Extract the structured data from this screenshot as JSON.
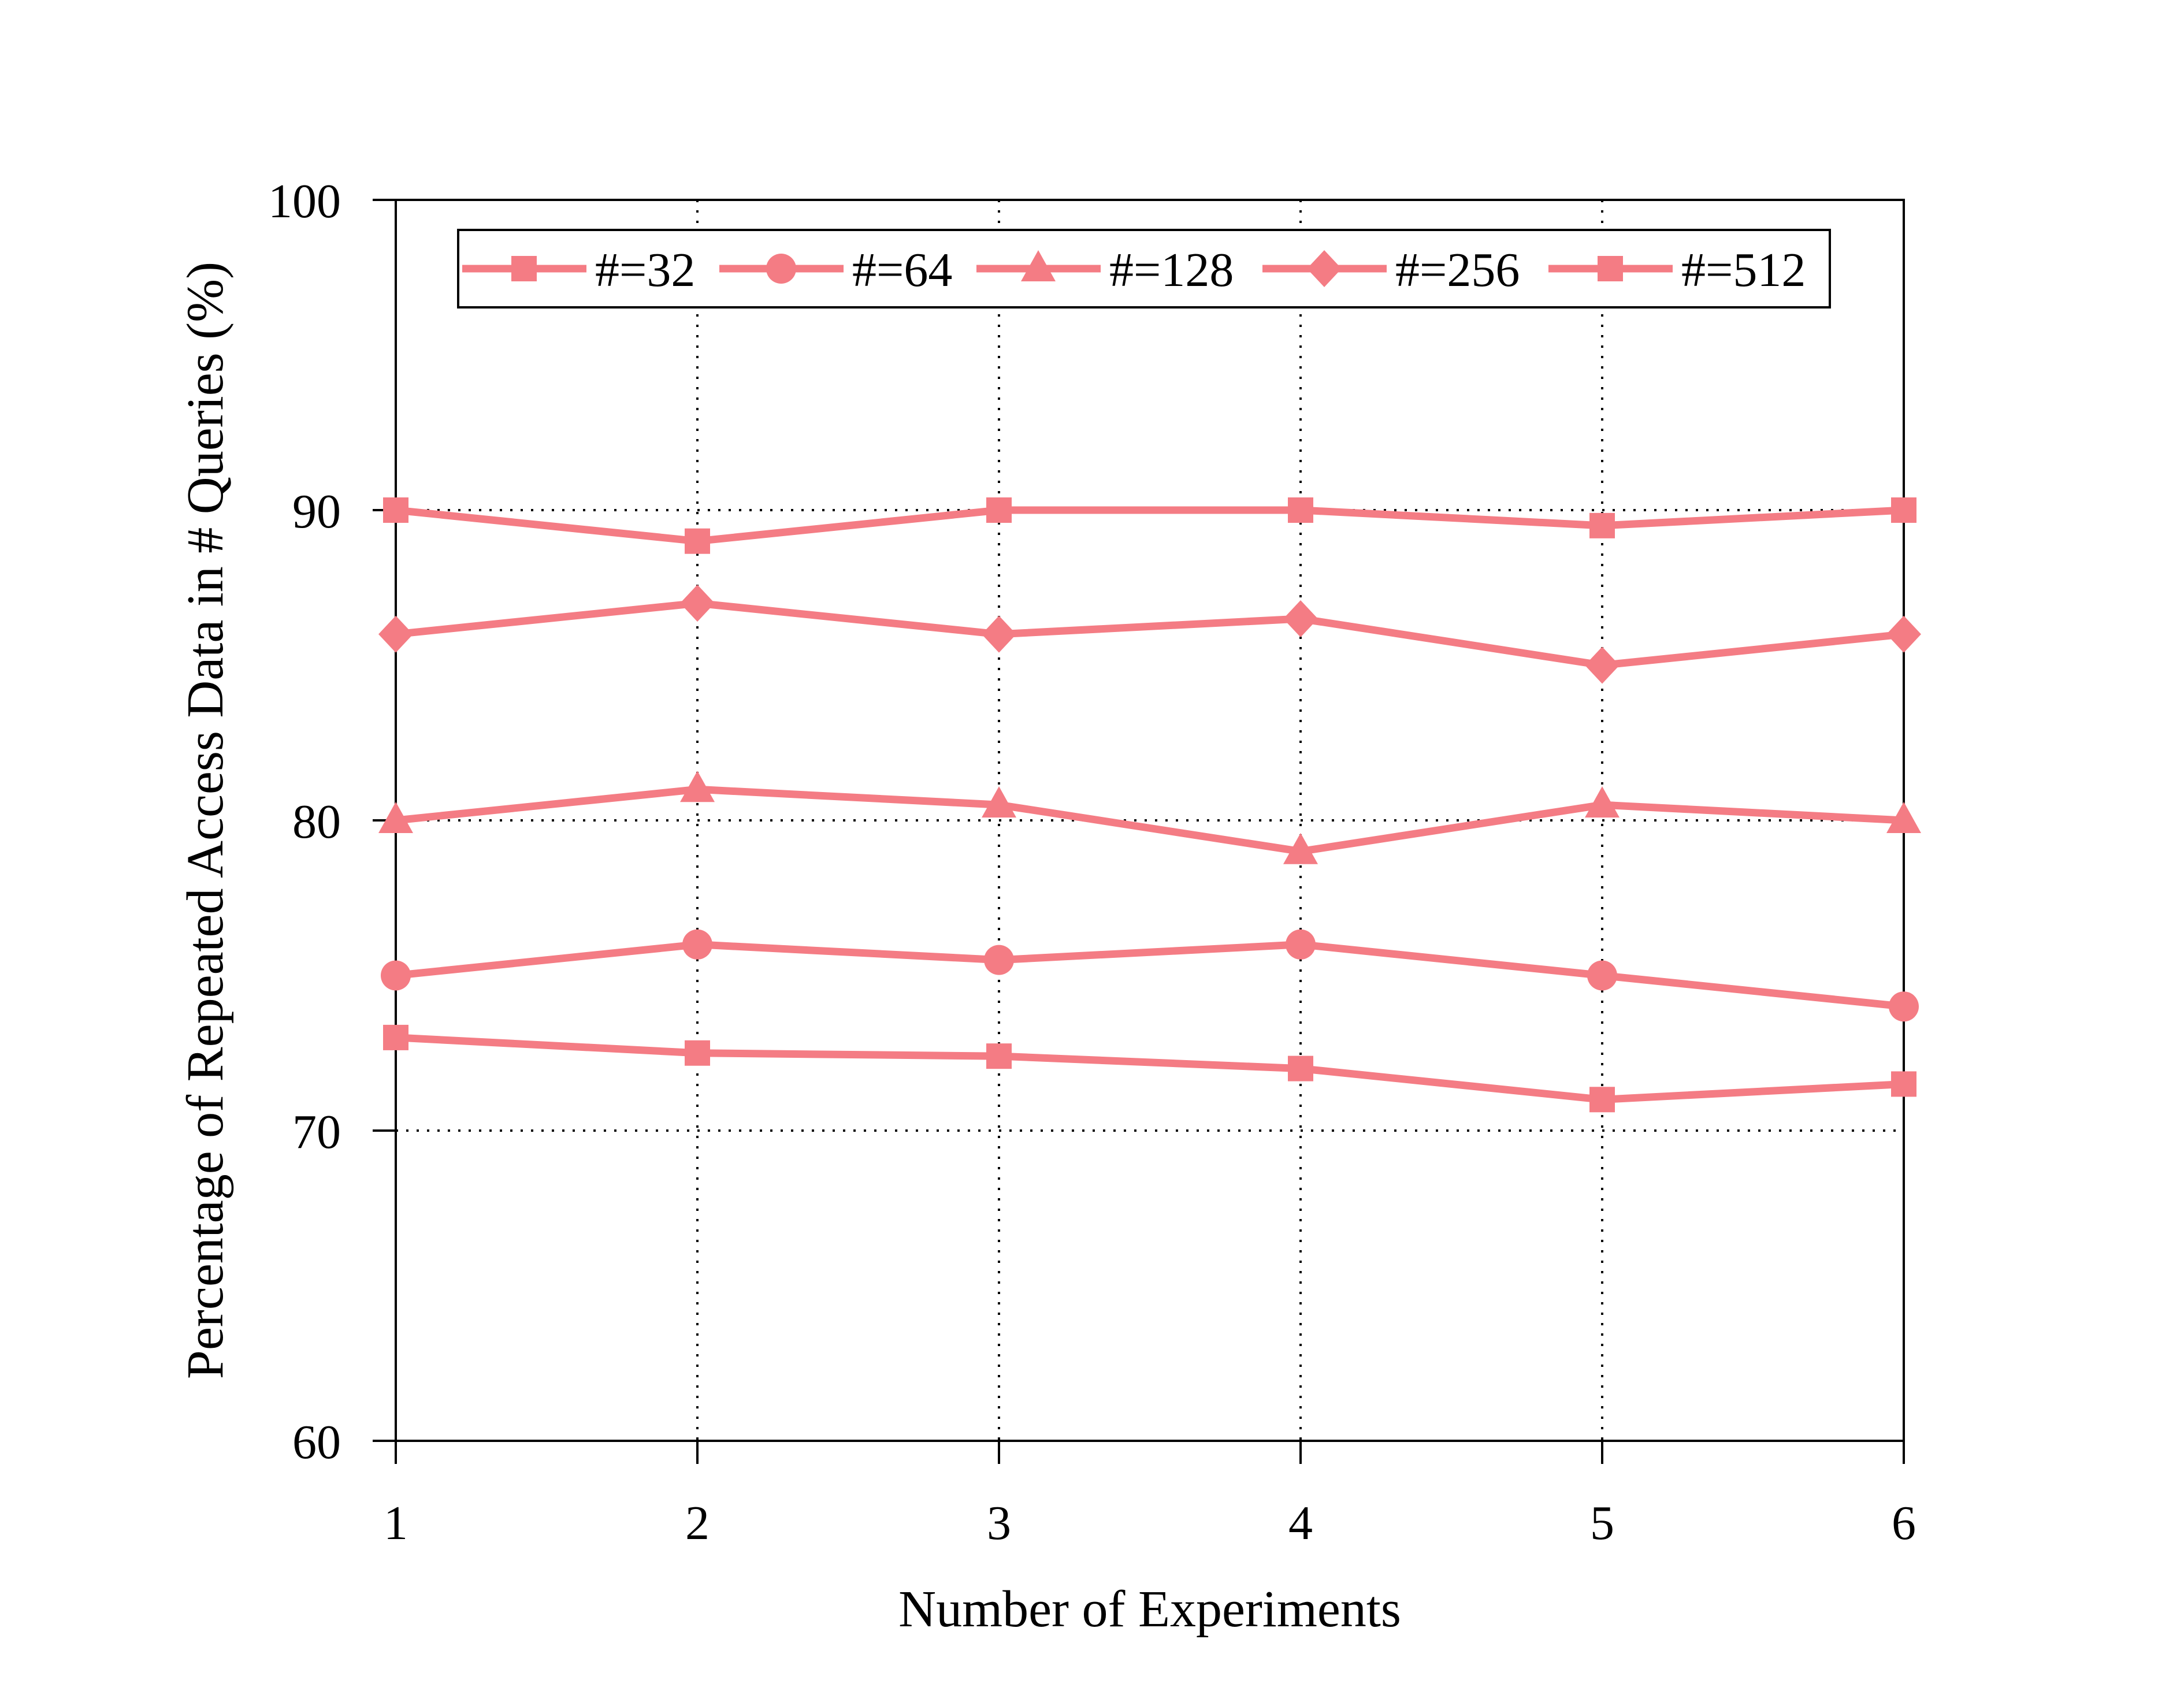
{
  "chart_data": {
    "type": "line",
    "title": "",
    "xlabel": "Number of Experiments",
    "ylabel": "Percentage of Repeated Access Data in # Queries (%)",
    "x": [
      1,
      2,
      3,
      4,
      5,
      6
    ],
    "xlim": [
      1,
      6
    ],
    "ylim": [
      60,
      100
    ],
    "xticks": [
      "1",
      "2",
      "3",
      "4",
      "5",
      "6"
    ],
    "yticks": [
      "60",
      "70",
      "80",
      "90",
      "100"
    ],
    "ytick_values": [
      60,
      70,
      80,
      90,
      100
    ],
    "grid": true,
    "legend_position": "top",
    "series_color": "#f47c84",
    "series": [
      {
        "name": "#=32",
        "marker": "square",
        "values": [
          73,
          72.5,
          72.4,
          72,
          71,
          71.5
        ]
      },
      {
        "name": "#=64",
        "marker": "circle",
        "values": [
          75,
          76,
          75.5,
          76,
          75,
          74
        ]
      },
      {
        "name": "#=128",
        "marker": "triangle",
        "values": [
          80,
          81,
          80.5,
          79,
          80.5,
          80
        ]
      },
      {
        "name": "#=256",
        "marker": "diamond",
        "values": [
          86,
          87,
          86,
          86.5,
          85,
          86
        ]
      },
      {
        "name": "#=512",
        "marker": "square",
        "values": [
          90,
          89,
          90,
          90,
          89.5,
          90
        ]
      }
    ]
  }
}
